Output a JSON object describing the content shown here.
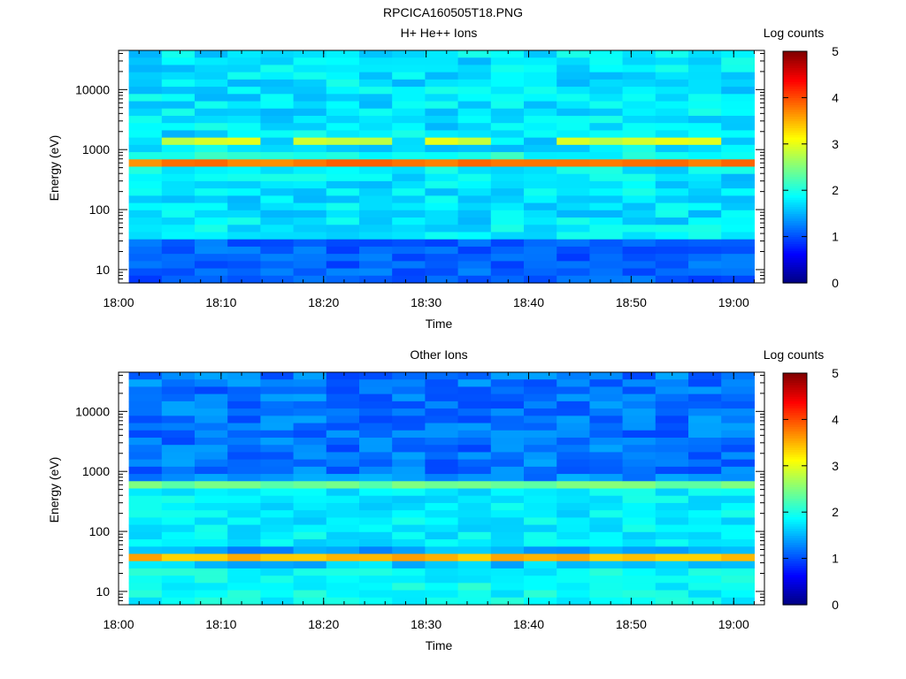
{
  "figure": {
    "title": "RPCICA160505T18.PNG"
  },
  "chart_data": [
    {
      "type": "heatmap",
      "title": "H+ He++ Ions",
      "xlabel": "Time",
      "ylabel": "Energy (eV)",
      "x_ticks": [
        "18:00",
        "18:10",
        "18:20",
        "18:30",
        "18:40",
        "18:50",
        "19:00"
      ],
      "x_range": [
        "18:00",
        "19:03"
      ],
      "data_x_range": [
        "18:01",
        "19:02"
      ],
      "y_scale": "log",
      "y_ticks": [
        10,
        100,
        1000,
        10000
      ],
      "y_tick_labels": [
        "10",
        "100",
        "1000",
        "10000"
      ],
      "y_range": [
        6,
        45000
      ],
      "colorbar": {
        "label": "Log counts",
        "ticks": [
          0,
          1,
          2,
          3,
          4,
          5
        ],
        "range": [
          0,
          5
        ]
      },
      "time_steps": 19,
      "energy_bins": 32,
      "background_level": 1.75,
      "bands": [
        {
          "energy_eV": 620,
          "level": 3.9,
          "width_decades": 0.05
        },
        {
          "energy_eV": 1330,
          "level": 3.1,
          "width_decades": 0.03,
          "present_steps": [
            1,
            2,
            3,
            5,
            6,
            7,
            9,
            10,
            13,
            14,
            15,
            16,
            17
          ]
        },
        {
          "energy_eV": 42,
          "level": 2.2,
          "width_decades": 0.03
        }
      ],
      "low_energy_level": 1.1,
      "low_energy_below_eV": 30
    },
    {
      "type": "heatmap",
      "title": "Other Ions",
      "xlabel": "Time",
      "ylabel": "Energy (eV)",
      "x_ticks": [
        "18:00",
        "18:10",
        "18:20",
        "18:30",
        "18:40",
        "18:50",
        "19:00"
      ],
      "x_range": [
        "18:00",
        "19:03"
      ],
      "data_x_range": [
        "18:01",
        "19:02"
      ],
      "y_scale": "log",
      "y_ticks": [
        10,
        100,
        1000,
        10000
      ],
      "y_tick_labels": [
        "10",
        "100",
        "1000",
        "10000"
      ],
      "y_range": [
        6,
        45000
      ],
      "colorbar": {
        "label": "Log counts",
        "ticks": [
          0,
          1,
          2,
          3,
          4,
          5
        ],
        "range": [
          0,
          5
        ]
      },
      "time_steps": 19,
      "energy_bins": 32,
      "background_level": 1.2,
      "bands": [
        {
          "energy_eV": 640,
          "level": 2.8,
          "width_decades": 0.04
        },
        {
          "energy_eV": 36,
          "level": 3.5,
          "width_decades": 0.06
        }
      ],
      "low_energy_level": 1.9,
      "low_energy_below_eV": 25,
      "mid_energy_level": 1.8,
      "mid_energy_range_eV": [
        50,
        500
      ]
    }
  ]
}
